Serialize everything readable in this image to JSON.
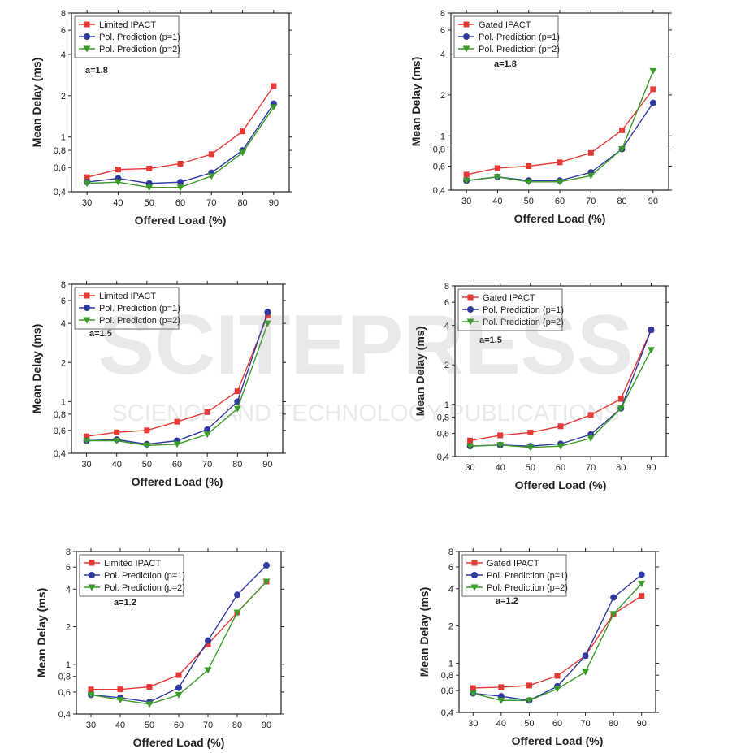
{
  "colors": {
    "red": "#e53935",
    "blue": "#2f3a9f",
    "green": "#3a9a2a",
    "watermark": "#888888"
  },
  "watermark": {
    "main": "SCITEPRESS",
    "sub": "SCIENCE AND TECHNOLOGY PUBLICATIONS"
  },
  "chart_data": [
    {
      "type": "line",
      "title": "",
      "xlabel": "Offered Load (%)",
      "ylabel": "Mean Delay (ms)",
      "annotation": "a=1.8",
      "yscale": "log",
      "ylim": [
        0.4,
        8
      ],
      "yticks": [
        "0,4",
        "0,6",
        "0,8",
        "1",
        "2",
        "4",
        "6",
        "8"
      ],
      "x": [
        30,
        40,
        50,
        60,
        70,
        80,
        90
      ],
      "legend": "top-left",
      "series": [
        {
          "name": "Limited IPACT",
          "marker": "square",
          "color": "red",
          "values": [
            0.51,
            0.58,
            0.59,
            0.64,
            0.75,
            1.1,
            2.35
          ]
        },
        {
          "name": "Pol. Prediction (p=1)",
          "marker": "circle",
          "color": "blue",
          "values": [
            0.47,
            0.5,
            0.46,
            0.47,
            0.55,
            0.8,
            1.75
          ]
        },
        {
          "name": "Pol. Prediction (p=2)",
          "marker": "triangle-down",
          "color": "green",
          "values": [
            0.46,
            0.47,
            0.43,
            0.43,
            0.52,
            0.77,
            1.65
          ]
        }
      ]
    },
    {
      "type": "line",
      "title": "",
      "xlabel": "Offered Load (%)",
      "ylabel": "Mean Delay (ms)",
      "annotation": "a=1.8",
      "yscale": "log",
      "ylim": [
        0.4,
        8
      ],
      "yticks": [
        "0,4",
        "0,6",
        "0,8",
        "1",
        "2",
        "4",
        "6",
        "8"
      ],
      "x": [
        30,
        40,
        50,
        60,
        70,
        80,
        90
      ],
      "legend": "top-left",
      "series": [
        {
          "name": "Gated IPACT",
          "marker": "square",
          "color": "red",
          "values": [
            0.52,
            0.58,
            0.6,
            0.64,
            0.75,
            1.1,
            2.2
          ]
        },
        {
          "name": "Pol. Prediction (p=1)",
          "marker": "circle",
          "color": "blue",
          "values": [
            0.47,
            0.5,
            0.47,
            0.47,
            0.54,
            0.8,
            1.75
          ]
        },
        {
          "name": "Pol. Prediction (p=2)",
          "marker": "triangle-down",
          "color": "green",
          "values": [
            0.47,
            0.5,
            0.46,
            0.46,
            0.51,
            0.8,
            3.0
          ]
        }
      ]
    },
    {
      "type": "line",
      "title": "",
      "xlabel": "Offered Load (%)",
      "ylabel": "Mean Delay (ms)",
      "annotation": "a=1.5",
      "yscale": "log",
      "ylim": [
        0.4,
        8
      ],
      "yticks": [
        "0,4",
        "0,6",
        "0,8",
        "1",
        "2",
        "4",
        "6",
        "8"
      ],
      "x": [
        30,
        40,
        50,
        60,
        70,
        80,
        90
      ],
      "legend": "top-left",
      "series": [
        {
          "name": "Limited IPACT",
          "marker": "square",
          "color": "red",
          "values": [
            0.54,
            0.58,
            0.6,
            0.7,
            0.83,
            1.2,
            4.6
          ]
        },
        {
          "name": "Pol. Prediction (p=1)",
          "marker": "circle",
          "color": "blue",
          "values": [
            0.5,
            0.51,
            0.47,
            0.5,
            0.61,
            1.0,
            4.9
          ]
        },
        {
          "name": "Pol. Prediction (p=2)",
          "marker": "triangle-down",
          "color": "green",
          "values": [
            0.5,
            0.5,
            0.46,
            0.47,
            0.56,
            0.88,
            4.0
          ]
        }
      ]
    },
    {
      "type": "line",
      "title": "",
      "xlabel": "Offered Load (%)",
      "ylabel": "Mean Delay (ms)",
      "annotation": "a=1.5",
      "yscale": "log",
      "ylim": [
        0.4,
        8
      ],
      "yticks": [
        "0,4",
        "0,6",
        "0,8",
        "1",
        "2",
        "4",
        "6",
        "8"
      ],
      "x": [
        30,
        40,
        50,
        60,
        70,
        80,
        90
      ],
      "legend": "top-left",
      "series": [
        {
          "name": "Gated IPACT",
          "marker": "square",
          "color": "red",
          "values": [
            0.53,
            0.58,
            0.61,
            0.68,
            0.83,
            1.1,
            3.7
          ]
        },
        {
          "name": "Pol. Prediction (p=1)",
          "marker": "circle",
          "color": "blue",
          "values": [
            0.48,
            0.49,
            0.48,
            0.5,
            0.59,
            0.93,
            3.7
          ]
        },
        {
          "name": "Pol. Prediction (p=2)",
          "marker": "triangle-down",
          "color": "green",
          "values": [
            0.48,
            0.49,
            0.47,
            0.48,
            0.55,
            0.93,
            2.6
          ]
        }
      ]
    },
    {
      "type": "line",
      "title": "",
      "xlabel": "Offered Load (%)",
      "ylabel": "Mean Delay (ms)",
      "annotation": "a=1.2",
      "yscale": "log",
      "ylim": [
        0.4,
        8
      ],
      "yticks": [
        "0,4",
        "0,6",
        "0,8",
        "1",
        "2",
        "4",
        "6",
        "8"
      ],
      "x": [
        30,
        40,
        50,
        60,
        70,
        80,
        90
      ],
      "legend": "top-left",
      "series": [
        {
          "name": "Limited IPACT",
          "marker": "square",
          "color": "red",
          "values": [
            0.63,
            0.63,
            0.66,
            0.82,
            1.45,
            2.6,
            4.6
          ]
        },
        {
          "name": "Pol. Prediction (p=1)",
          "marker": "circle",
          "color": "blue",
          "values": [
            0.57,
            0.54,
            0.5,
            0.65,
            1.55,
            3.6,
            6.2
          ]
        },
        {
          "name": "Pol. Prediction (p=2)",
          "marker": "triangle-down",
          "color": "green",
          "values": [
            0.57,
            0.52,
            0.48,
            0.57,
            0.9,
            2.6,
            4.6
          ]
        }
      ]
    },
    {
      "type": "line",
      "title": "",
      "xlabel": "Offered Load (%)",
      "ylabel": "Mean Delay (ms)",
      "annotation": "a=1.2",
      "yscale": "log",
      "ylim": [
        0.4,
        8
      ],
      "yticks": [
        "0,4",
        "0,6",
        "0,8",
        "1",
        "2",
        "4",
        "6",
        "8"
      ],
      "x": [
        30,
        40,
        50,
        60,
        70,
        80,
        90
      ],
      "legend": "top-left",
      "series": [
        {
          "name": "Gated IPACT",
          "marker": "square",
          "color": "red",
          "values": [
            0.63,
            0.64,
            0.66,
            0.79,
            1.15,
            2.5,
            3.5
          ]
        },
        {
          "name": "Pol. Prediction (p=1)",
          "marker": "circle",
          "color": "blue",
          "values": [
            0.57,
            0.54,
            0.5,
            0.65,
            1.15,
            3.4,
            5.2
          ]
        },
        {
          "name": "Pol. Prediction (p=2)",
          "marker": "triangle-down",
          "color": "green",
          "values": [
            0.57,
            0.5,
            0.5,
            0.62,
            0.85,
            2.5,
            4.4
          ]
        }
      ]
    }
  ]
}
